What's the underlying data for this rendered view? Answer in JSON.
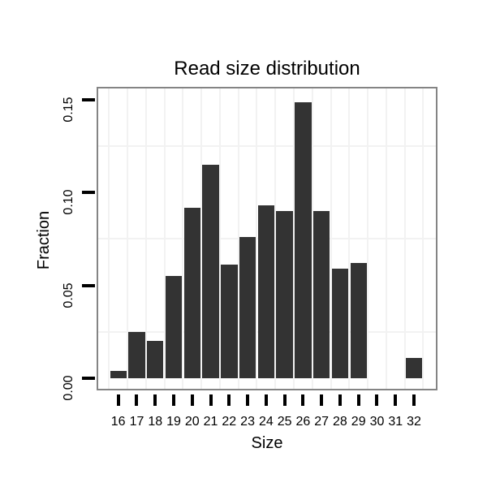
{
  "figure": {
    "background": "#ffffff",
    "text_color": "#000000"
  },
  "chart_data": {
    "type": "bar",
    "title": "Read size distribution",
    "xlabel": "Size",
    "ylabel": "Fraction",
    "categories": [
      "16",
      "17",
      "18",
      "19",
      "20",
      "21",
      "22",
      "23",
      "24",
      "25",
      "26",
      "27",
      "28",
      "29",
      "30",
      "31",
      "32"
    ],
    "values": [
      0.004,
      0.025,
      0.02,
      0.055,
      0.092,
      0.115,
      0.061,
      0.076,
      0.093,
      0.09,
      0.149,
      0.09,
      0.059,
      0.062,
      0,
      0,
      0.011
    ],
    "ylim": [
      0,
      0.15
    ],
    "ytick_values": [
      0,
      0.05,
      0.1,
      0.15
    ],
    "ytick_labels": [
      "0.00",
      "0.05",
      "0.10",
      "0.15"
    ],
    "minor_gridlines_y": [
      0.025,
      0.075,
      0.125
    ],
    "grid": "minor gridlines only, light gray, white panel",
    "legend": "none",
    "bar_color": "#333333",
    "panel_border_color": "#848484",
    "gridline_color": "#f2f2f2",
    "tick_color": "#000000"
  }
}
